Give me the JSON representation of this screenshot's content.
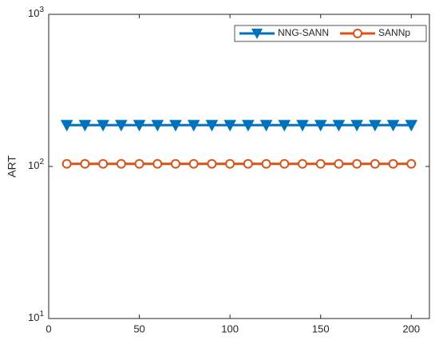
{
  "chart_data": {
    "type": "line",
    "y_label": "ART",
    "y_scale": "log",
    "x": [
      10,
      20,
      30,
      40,
      50,
      60,
      70,
      80,
      90,
      100,
      110,
      120,
      130,
      140,
      150,
      160,
      170,
      180,
      190,
      200
    ],
    "series": [
      {
        "name": "NNG-SANN",
        "color": "#0072BD",
        "marker": "triangle-down",
        "values": [
          187,
          187,
          187,
          187,
          187,
          187,
          187,
          187,
          187,
          187,
          187,
          187,
          187,
          187,
          187,
          187,
          187,
          187,
          187,
          187
        ]
      },
      {
        "name": "SANNp",
        "color": "#D95319",
        "marker": "circle",
        "values": [
          104,
          104,
          104,
          104,
          104,
          104,
          104,
          104,
          104,
          104,
          104,
          104,
          104,
          104,
          104,
          104,
          104,
          104,
          104,
          104
        ]
      }
    ],
    "xlim": [
      0,
      210
    ],
    "xticks": [
      0,
      50,
      100,
      150,
      200
    ],
    "ylim": [
      10,
      1000
    ],
    "yticks": [
      {
        "value": 10,
        "label": "10^1"
      },
      {
        "value": 100,
        "label": "10^2"
      },
      {
        "value": 1000,
        "label": "10^3"
      }
    ],
    "legend": "top-right",
    "grid": false
  }
}
